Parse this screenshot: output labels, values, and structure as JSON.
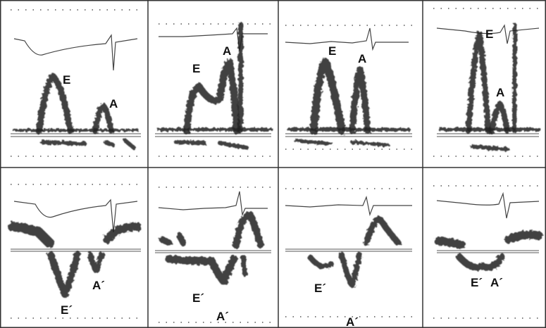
{
  "top_row": [
    [
      "E",
      "A"
    ],
    [
      "E",
      "A"
    ],
    [
      "E",
      "A"
    ],
    [
      "E",
      "A"
    ]
  ],
  "bottom_row": [
    [
      "E´",
      "A´"
    ],
    [
      "E´",
      "A´"
    ],
    [
      "E´",
      "A´"
    ],
    [
      "E´",
      "A´"
    ]
  ]
}
